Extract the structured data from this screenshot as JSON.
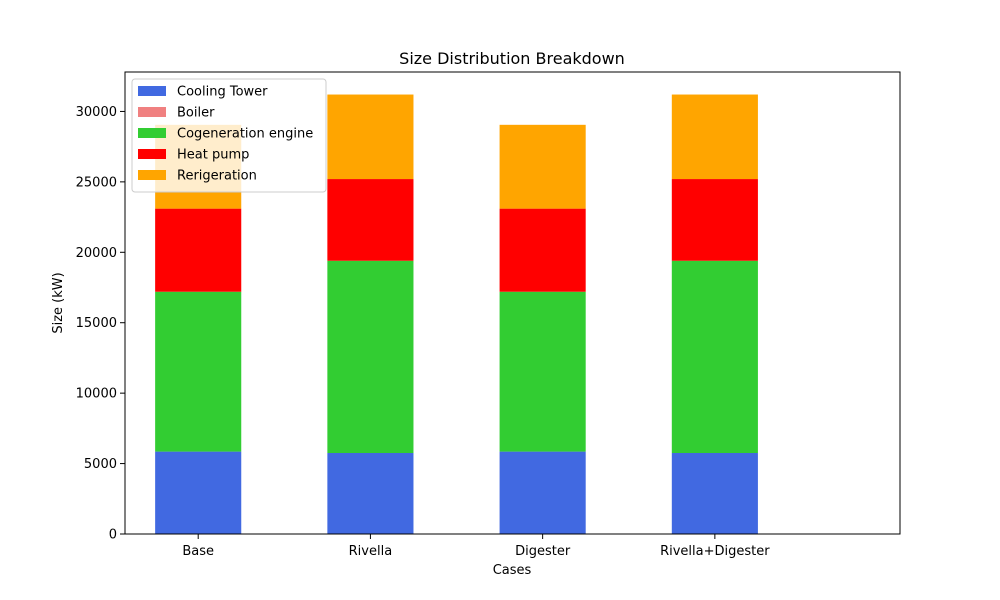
{
  "chart_data": {
    "type": "bar",
    "stacked": true,
    "title": "Size Distribution Breakdown",
    "xlabel": "Cases",
    "ylabel": "Size (kW)",
    "categories": [
      "Base",
      "Rivella",
      "Digester",
      "Rivella+Digester"
    ],
    "ylim": [
      0,
      32800
    ],
    "yticks": [
      0,
      5000,
      10000,
      15000,
      20000,
      25000,
      30000
    ],
    "grid": false,
    "legend_position": "top-left",
    "series": [
      {
        "name": "Cooling Tower",
        "color": "#4169e1",
        "values": [
          5850,
          5750,
          5850,
          5750
        ]
      },
      {
        "name": "Boiler",
        "color": "#f08080",
        "values": [
          0,
          0,
          0,
          0
        ]
      },
      {
        "name": "Cogeneration engine",
        "color": "#32cd32",
        "values": [
          11350,
          13650,
          11350,
          13650
        ]
      },
      {
        "name": "Heat pump",
        "color": "#ff0000",
        "values": [
          5900,
          5800,
          5900,
          5800
        ]
      },
      {
        "name": "Rerigeration",
        "color": "#ffa500",
        "values": [
          5950,
          6000,
          5950,
          6000
        ]
      }
    ]
  }
}
